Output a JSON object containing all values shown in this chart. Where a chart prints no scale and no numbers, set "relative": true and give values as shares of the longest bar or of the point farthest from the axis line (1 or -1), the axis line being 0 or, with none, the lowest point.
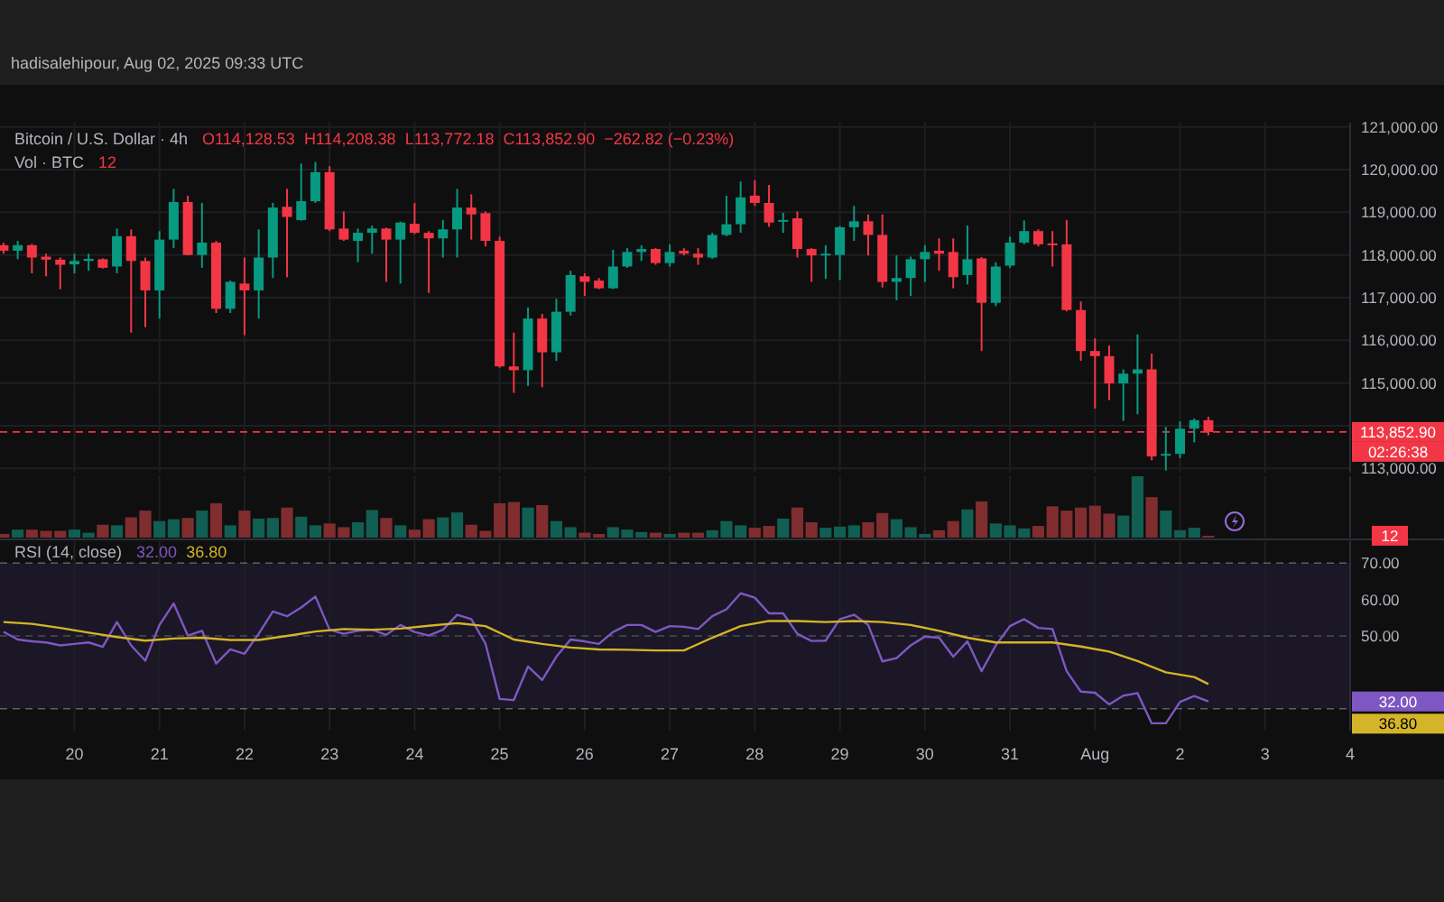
{
  "chart_data": [
    {
      "type": "candlestick",
      "title": "Bitcoin / U.S. Dollar · 4h",
      "subtitle": "hadisalehipour, Aug 02, 2025 09:33 UTC",
      "annotations": [
        "O114,128.53",
        "H114,208.38",
        "L113,772.18",
        "C113,852.90",
        "−262.82 (−0.23%)",
        "02:26:38"
      ],
      "x": [
        "2025-07-19T04:00",
        "2025-07-19T08:00",
        "2025-07-19T12:00",
        "2025-07-19T16:00",
        "2025-07-19T20:00",
        "2025-07-20T00:00",
        "2025-07-20T04:00",
        "2025-07-20T08:00",
        "2025-07-20T12:00",
        "2025-07-20T16:00",
        "2025-07-20T20:00",
        "2025-07-21T00:00",
        "2025-07-21T04:00",
        "2025-07-21T08:00",
        "2025-07-21T12:00",
        "2025-07-21T16:00",
        "2025-07-21T20:00",
        "2025-07-22T00:00",
        "2025-07-22T04:00",
        "2025-07-22T08:00",
        "2025-07-22T12:00",
        "2025-07-22T16:00",
        "2025-07-22T20:00",
        "2025-07-23T00:00",
        "2025-07-23T04:00",
        "2025-07-23T08:00",
        "2025-07-23T12:00",
        "2025-07-23T16:00",
        "2025-07-23T20:00",
        "2025-07-24T00:00",
        "2025-07-24T04:00",
        "2025-07-24T08:00",
        "2025-07-24T12:00",
        "2025-07-24T16:00",
        "2025-07-24T20:00",
        "2025-07-25T00:00",
        "2025-07-25T04:00",
        "2025-07-25T08:00",
        "2025-07-25T12:00",
        "2025-07-25T16:00",
        "2025-07-25T20:00",
        "2025-07-26T00:00",
        "2025-07-26T04:00",
        "2025-07-26T08:00",
        "2025-07-26T12:00",
        "2025-07-26T16:00",
        "2025-07-26T20:00",
        "2025-07-27T00:00",
        "2025-07-27T04:00",
        "2025-07-27T08:00",
        "2025-07-27T12:00",
        "2025-07-27T16:00",
        "2025-07-27T20:00",
        "2025-07-28T00:00",
        "2025-07-28T04:00",
        "2025-07-28T08:00",
        "2025-07-28T12:00",
        "2025-07-28T16:00",
        "2025-07-28T20:00",
        "2025-07-29T00:00",
        "2025-07-29T04:00",
        "2025-07-29T08:00",
        "2025-07-29T12:00",
        "2025-07-29T16:00",
        "2025-07-29T20:00",
        "2025-07-30T00:00",
        "2025-07-30T04:00",
        "2025-07-30T08:00",
        "2025-07-30T12:00",
        "2025-07-30T16:00",
        "2025-07-30T20:00",
        "2025-07-31T00:00",
        "2025-07-31T04:00",
        "2025-07-31T08:00",
        "2025-07-31T12:00",
        "2025-07-31T16:00",
        "2025-07-31T20:00",
        "2025-08-01T00:00",
        "2025-08-01T04:00",
        "2025-08-01T08:00",
        "2025-08-01T12:00",
        "2025-08-01T16:00",
        "2025-08-01T20:00",
        "2025-08-02T00:00",
        "2025-08-02T04:00",
        "2025-08-02T08:00"
      ],
      "ohlc": [
        [
          118230,
          118290,
          118030,
          118100
        ],
        [
          118100,
          118330,
          117900,
          118230
        ],
        [
          118230,
          118260,
          117570,
          117940
        ],
        [
          117960,
          118030,
          117500,
          117890
        ],
        [
          117890,
          117940,
          117200,
          117770
        ],
        [
          117780,
          118030,
          117570,
          117860
        ],
        [
          117860,
          118030,
          117630,
          117910
        ],
        [
          117900,
          117920,
          117680,
          117700
        ],
        [
          117730,
          118620,
          117570,
          118440
        ],
        [
          118440,
          118600,
          116180,
          117860
        ],
        [
          117860,
          117940,
          116310,
          117170
        ],
        [
          117170,
          118560,
          116510,
          118360
        ],
        [
          118360,
          119550,
          118160,
          119240
        ],
        [
          119240,
          119390,
          117990,
          118000
        ],
        [
          118000,
          119220,
          117700,
          118290
        ],
        [
          118290,
          118330,
          116640,
          116740
        ],
        [
          116740,
          117400,
          116640,
          117370
        ],
        [
          117330,
          117940,
          116120,
          117170
        ],
        [
          117170,
          118600,
          116510,
          117940
        ],
        [
          117940,
          119220,
          117460,
          119110
        ],
        [
          119130,
          119550,
          117480,
          118890
        ],
        [
          118820,
          120140,
          118800,
          119260
        ],
        [
          119260,
          120180,
          119220,
          119940
        ],
        [
          119940,
          120080,
          118560,
          118600
        ],
        [
          118620,
          119020,
          118330,
          118360
        ],
        [
          118330,
          118620,
          117830,
          118520
        ],
        [
          118520,
          118690,
          118030,
          118620
        ],
        [
          118620,
          118640,
          117370,
          118360
        ],
        [
          118360,
          118780,
          117330,
          118760
        ],
        [
          118730,
          119220,
          118490,
          118520
        ],
        [
          118520,
          118560,
          117110,
          118390
        ],
        [
          118390,
          118820,
          117940,
          118600
        ],
        [
          118600,
          119550,
          117940,
          119110
        ],
        [
          119110,
          119420,
          118360,
          118950
        ],
        [
          118980,
          119020,
          118200,
          118330
        ],
        [
          118330,
          118430,
          115360,
          115390
        ],
        [
          115390,
          116180,
          114770,
          115300
        ],
        [
          115300,
          116770,
          114930,
          116510
        ],
        [
          116510,
          116620,
          114900,
          115720
        ],
        [
          115720,
          116970,
          115520,
          116670
        ],
        [
          116670,
          117630,
          116580,
          117530
        ],
        [
          117500,
          117570,
          117040,
          117370
        ],
        [
          117400,
          117460,
          117200,
          117220
        ],
        [
          117220,
          118120,
          117200,
          117730
        ],
        [
          117730,
          118160,
          117700,
          118070
        ],
        [
          118070,
          118230,
          117860,
          118140
        ],
        [
          118140,
          118160,
          117770,
          117810
        ],
        [
          117810,
          118250,
          117730,
          118070
        ],
        [
          118100,
          118160,
          117990,
          118030
        ],
        [
          118030,
          118160,
          117770,
          117940
        ],
        [
          117940,
          118520,
          117910,
          118470
        ],
        [
          118470,
          119390,
          118440,
          118720
        ],
        [
          118720,
          119720,
          118520,
          119350
        ],
        [
          119390,
          119750,
          119150,
          119220
        ],
        [
          119220,
          119640,
          118660,
          118760
        ],
        [
          118800,
          118990,
          118520,
          118820
        ],
        [
          118860,
          119020,
          117940,
          118140
        ],
        [
          118140,
          118160,
          117370,
          117990
        ],
        [
          118010,
          118230,
          117440,
          118030
        ],
        [
          118000,
          118680,
          117410,
          118650
        ],
        [
          118650,
          119150,
          118330,
          118790
        ],
        [
          118790,
          118950,
          117990,
          118470
        ],
        [
          118470,
          118950,
          117240,
          117370
        ],
        [
          117370,
          117990,
          116940,
          117460
        ],
        [
          117460,
          117960,
          117040,
          117900
        ],
        [
          117900,
          118230,
          117370,
          118070
        ],
        [
          118100,
          118390,
          117630,
          118030
        ],
        [
          118070,
          118390,
          117220,
          117480
        ],
        [
          117530,
          118690,
          117310,
          117900
        ],
        [
          117920,
          117950,
          115750,
          116880
        ],
        [
          116880,
          117830,
          116800,
          117730
        ],
        [
          117750,
          118430,
          117700,
          118290
        ],
        [
          118290,
          118810,
          118250,
          118560
        ],
        [
          118560,
          118600,
          118200,
          118250
        ],
        [
          118270,
          118560,
          117730,
          118230
        ],
        [
          118250,
          118820,
          116680,
          116710
        ],
        [
          116710,
          116910,
          115520,
          115750
        ],
        [
          115750,
          116050,
          114400,
          115630
        ],
        [
          115630,
          115880,
          114600,
          114990
        ],
        [
          114990,
          115320,
          114110,
          115220
        ],
        [
          115220,
          116140,
          114270,
          115320
        ],
        [
          115320,
          115690,
          113190,
          113280
        ],
        [
          113300,
          113970,
          112950,
          113340
        ],
        [
          113340,
          114100,
          113240,
          113930
        ],
        [
          113930,
          114170,
          113610,
          114130
        ],
        [
          114128.53,
          114208.38,
          113772.18,
          113852.9
        ]
      ],
      "colors": [
        "#f23645",
        "#089981",
        "#f23645",
        "#f23645",
        "#f23645",
        "#089981",
        "#089981",
        "#f23645",
        "#089981",
        "#f23645",
        "#f23645",
        "#089981",
        "#089981",
        "#f23645",
        "#089981",
        "#f23645",
        "#089981",
        "#f23645",
        "#089981",
        "#089981",
        "#f23645",
        "#089981",
        "#089981",
        "#f23645",
        "#f23645",
        "#089981",
        "#089981",
        "#f23645",
        "#089981",
        "#f23645",
        "#f23645",
        "#089981",
        "#089981",
        "#f23645",
        "#f23645",
        "#f23645",
        "#f23645",
        "#089981",
        "#f23645",
        "#089981",
        "#089981",
        "#f23645",
        "#f23645",
        "#089981",
        "#089981",
        "#089981",
        "#f23645",
        "#089981",
        "#f23645",
        "#f23645",
        "#089981",
        "#089981",
        "#089981",
        "#f23645",
        "#f23645",
        "#089981",
        "#f23645",
        "#f23645",
        "#089981",
        "#089981",
        "#089981",
        "#f23645",
        "#f23645",
        "#089981",
        "#089981",
        "#089981",
        "#f23645",
        "#f23645",
        "#089981",
        "#f23645",
        "#089981",
        "#089981",
        "#089981",
        "#f23645",
        "#f23645",
        "#f23645",
        "#f23645",
        "#f23645",
        "#f23645",
        "#089981",
        "#089981",
        "#f23645",
        "#089981",
        "#089981",
        "#089981",
        "#f23645"
      ],
      "xlim": [
        "2025-07-19T03:00",
        "2025-08-04T00:00"
      ],
      "ylim": [
        112900,
        121100
      ],
      "yticks": [
        {
          "value": 113000,
          "label": "113,000.00"
        },
        {
          "value": 114000,
          "label": null
        },
        {
          "value": 115000,
          "label": "115,000.00"
        },
        {
          "value": 116000,
          "label": "116,000.00"
        },
        {
          "value": 117000,
          "label": "117,000.00"
        },
        {
          "value": 118000,
          "label": "118,000.00"
        },
        {
          "value": 119000,
          "label": "119,000.00"
        },
        {
          "value": 120000,
          "label": "120,000.00"
        },
        {
          "value": 121000,
          "label": "121,000.00"
        }
      ],
      "grid": true,
      "tick_labels": "y",
      "ref_lines": [
        {
          "axis": "y",
          "value": 113852.9,
          "label": "113,852.90",
          "color": "#f23645",
          "line_style": "dashed"
        }
      ]
    },
    {
      "type": "bar",
      "title": "Vol · BTC",
      "relative": true,
      "tick_labels": false,
      "grid": "x",
      "annotations": [
        "12"
      ],
      "x": [
        "2025-07-19T04:00",
        "2025-07-19T08:00",
        "2025-07-19T12:00",
        "2025-07-19T16:00",
        "2025-07-19T20:00",
        "2025-07-20T00:00",
        "2025-07-20T04:00",
        "2025-07-20T08:00",
        "2025-07-20T12:00",
        "2025-07-20T16:00",
        "2025-07-20T20:00",
        "2025-07-21T00:00",
        "2025-07-21T04:00",
        "2025-07-21T08:00",
        "2025-07-21T12:00",
        "2025-07-21T16:00",
        "2025-07-21T20:00",
        "2025-07-22T00:00",
        "2025-07-22T04:00",
        "2025-07-22T08:00",
        "2025-07-22T12:00",
        "2025-07-22T16:00",
        "2025-07-22T20:00",
        "2025-07-23T00:00",
        "2025-07-23T04:00",
        "2025-07-23T08:00",
        "2025-07-23T12:00",
        "2025-07-23T16:00",
        "2025-07-23T20:00",
        "2025-07-24T00:00",
        "2025-07-24T04:00",
        "2025-07-24T08:00",
        "2025-07-24T12:00",
        "2025-07-24T16:00",
        "2025-07-24T20:00",
        "2025-07-25T00:00",
        "2025-07-25T04:00",
        "2025-07-25T08:00",
        "2025-07-25T12:00",
        "2025-07-25T16:00",
        "2025-07-25T20:00",
        "2025-07-26T00:00",
        "2025-07-26T04:00",
        "2025-07-26T08:00",
        "2025-07-26T12:00",
        "2025-07-26T16:00",
        "2025-07-26T20:00",
        "2025-07-27T00:00",
        "2025-07-27T04:00",
        "2025-07-27T08:00",
        "2025-07-27T12:00",
        "2025-07-27T16:00",
        "2025-07-27T20:00",
        "2025-07-28T00:00",
        "2025-07-28T04:00",
        "2025-07-28T08:00",
        "2025-07-28T12:00",
        "2025-07-28T16:00",
        "2025-07-28T20:00",
        "2025-07-29T00:00",
        "2025-07-29T04:00",
        "2025-07-29T08:00",
        "2025-07-29T12:00",
        "2025-07-29T16:00",
        "2025-07-29T20:00",
        "2025-07-30T00:00",
        "2025-07-30T04:00",
        "2025-07-30T08:00",
        "2025-07-30T12:00",
        "2025-07-30T16:00",
        "2025-07-30T20:00",
        "2025-07-31T00:00",
        "2025-07-31T04:00",
        "2025-07-31T08:00",
        "2025-07-31T12:00",
        "2025-07-31T16:00",
        "2025-07-31T20:00",
        "2025-08-01T00:00",
        "2025-08-01T04:00",
        "2025-08-01T08:00",
        "2025-08-01T12:00",
        "2025-08-01T16:00",
        "2025-08-01T20:00",
        "2025-08-02T00:00",
        "2025-08-02T04:00",
        "2025-08-02T08:00"
      ],
      "values": [
        0.06,
        0.13,
        0.13,
        0.11,
        0.11,
        0.13,
        0.08,
        0.21,
        0.2,
        0.33,
        0.44,
        0.27,
        0.3,
        0.32,
        0.44,
        0.56,
        0.2,
        0.44,
        0.31,
        0.32,
        0.49,
        0.34,
        0.2,
        0.23,
        0.17,
        0.25,
        0.45,
        0.32,
        0.2,
        0.13,
        0.3,
        0.33,
        0.41,
        0.21,
        0.11,
        0.56,
        0.58,
        0.49,
        0.53,
        0.27,
        0.17,
        0.08,
        0.06,
        0.17,
        0.13,
        0.09,
        0.08,
        0.06,
        0.08,
        0.08,
        0.12,
        0.27,
        0.2,
        0.16,
        0.19,
        0.31,
        0.49,
        0.25,
        0.16,
        0.18,
        0.2,
        0.25,
        0.4,
        0.3,
        0.17,
        0.06,
        0.12,
        0.27,
        0.46,
        0.59,
        0.23,
        0.2,
        0.15,
        0.19,
        0.51,
        0.44,
        0.49,
        0.52,
        0.39,
        0.36,
        1,
        0.66,
        0.44,
        0.12,
        0.16,
        0.03
      ],
      "colors": [
        "#7f2d2f",
        "#115e52",
        "#7f2d2f",
        "#7f2d2f",
        "#7f2d2f",
        "#115e52",
        "#115e52",
        "#7f2d2f",
        "#115e52",
        "#7f2d2f",
        "#7f2d2f",
        "#115e52",
        "#115e52",
        "#7f2d2f",
        "#115e52",
        "#7f2d2f",
        "#115e52",
        "#7f2d2f",
        "#115e52",
        "#115e52",
        "#7f2d2f",
        "#115e52",
        "#115e52",
        "#7f2d2f",
        "#7f2d2f",
        "#115e52",
        "#115e52",
        "#7f2d2f",
        "#115e52",
        "#7f2d2f",
        "#7f2d2f",
        "#115e52",
        "#115e52",
        "#7f2d2f",
        "#7f2d2f",
        "#7f2d2f",
        "#7f2d2f",
        "#115e52",
        "#7f2d2f",
        "#115e52",
        "#115e52",
        "#7f2d2f",
        "#7f2d2f",
        "#115e52",
        "#115e52",
        "#115e52",
        "#7f2d2f",
        "#115e52",
        "#7f2d2f",
        "#7f2d2f",
        "#115e52",
        "#115e52",
        "#115e52",
        "#7f2d2f",
        "#7f2d2f",
        "#115e52",
        "#7f2d2f",
        "#7f2d2f",
        "#115e52",
        "#115e52",
        "#115e52",
        "#7f2d2f",
        "#7f2d2f",
        "#115e52",
        "#115e52",
        "#115e52",
        "#7f2d2f",
        "#7f2d2f",
        "#115e52",
        "#7f2d2f",
        "#115e52",
        "#115e52",
        "#115e52",
        "#7f2d2f",
        "#7f2d2f",
        "#7f2d2f",
        "#7f2d2f",
        "#7f2d2f",
        "#7f2d2f",
        "#115e52",
        "#115e52",
        "#7f2d2f",
        "#115e52",
        "#115e52",
        "#115e52",
        "#7f2d2f"
      ],
      "xlim": [
        "2025-07-19T03:00",
        "2025-08-04T00:00"
      ]
    },
    {
      "type": "line",
      "title": "RSI (14, close)",
      "grid": "x",
      "annotations": [
        "32.00",
        "36.80"
      ],
      "x": [
        "2025-07-19T04:00",
        "2025-07-19T08:00",
        "2025-07-19T12:00",
        "2025-07-19T16:00",
        "2025-07-19T20:00",
        "2025-07-20T00:00",
        "2025-07-20T04:00",
        "2025-07-20T08:00",
        "2025-07-20T12:00",
        "2025-07-20T16:00",
        "2025-07-20T20:00",
        "2025-07-21T00:00",
        "2025-07-21T04:00",
        "2025-07-21T08:00",
        "2025-07-21T12:00",
        "2025-07-21T16:00",
        "2025-07-21T20:00",
        "2025-07-22T00:00",
        "2025-07-22T04:00",
        "2025-07-22T08:00",
        "2025-07-22T12:00",
        "2025-07-22T16:00",
        "2025-07-22T20:00",
        "2025-07-23T00:00",
        "2025-07-23T04:00",
        "2025-07-23T08:00",
        "2025-07-23T12:00",
        "2025-07-23T16:00",
        "2025-07-23T20:00",
        "2025-07-24T00:00",
        "2025-07-24T04:00",
        "2025-07-24T08:00",
        "2025-07-24T12:00",
        "2025-07-24T16:00",
        "2025-07-24T20:00",
        "2025-07-25T00:00",
        "2025-07-25T04:00",
        "2025-07-25T08:00",
        "2025-07-25T12:00",
        "2025-07-25T16:00",
        "2025-07-25T20:00",
        "2025-07-26T00:00",
        "2025-07-26T04:00",
        "2025-07-26T08:00",
        "2025-07-26T12:00",
        "2025-07-26T16:00",
        "2025-07-26T20:00",
        "2025-07-27T00:00",
        "2025-07-27T04:00",
        "2025-07-27T08:00",
        "2025-07-27T12:00",
        "2025-07-27T16:00",
        "2025-07-27T20:00",
        "2025-07-28T00:00",
        "2025-07-28T04:00",
        "2025-07-28T08:00",
        "2025-07-28T12:00",
        "2025-07-28T16:00",
        "2025-07-28T20:00",
        "2025-07-29T00:00",
        "2025-07-29T04:00",
        "2025-07-29T08:00",
        "2025-07-29T12:00",
        "2025-07-29T16:00",
        "2025-07-29T20:00",
        "2025-07-30T00:00",
        "2025-07-30T04:00",
        "2025-07-30T08:00",
        "2025-07-30T12:00",
        "2025-07-30T16:00",
        "2025-07-30T20:00",
        "2025-07-31T00:00",
        "2025-07-31T04:00",
        "2025-07-31T08:00",
        "2025-07-31T12:00",
        "2025-07-31T16:00",
        "2025-07-31T20:00",
        "2025-08-01T00:00",
        "2025-08-01T04:00",
        "2025-08-01T08:00",
        "2025-08-01T12:00",
        "2025-08-01T16:00",
        "2025-08-01T20:00",
        "2025-08-02T00:00",
        "2025-08-02T04:00",
        "2025-08-02T08:00"
      ],
      "series": [
        {
          "color": "#7e57c2",
          "values": [
            51.1,
            49.0,
            48.5,
            48.2,
            47.4,
            47.8,
            48.2,
            47.0,
            53.8,
            47.4,
            43.2,
            53.0,
            58.9,
            50.1,
            51.4,
            42.4,
            46.3,
            45.1,
            50.6,
            56.7,
            55.4,
            57.8,
            60.8,
            51.7,
            50.6,
            51.4,
            51.7,
            50.3,
            53.0,
            51.1,
            50.1,
            51.7,
            55.8,
            54.6,
            47.9,
            32.7,
            32.4,
            41.6,
            37.9,
            44.3,
            49.0,
            48.5,
            47.8,
            51.1,
            53.0,
            53.0,
            51.1,
            52.7,
            52.5,
            51.9,
            55.4,
            57.3,
            61.7,
            60.5,
            56.2,
            56.2,
            50.6,
            48.6,
            48.7,
            54.6,
            55.8,
            53.0,
            43.0,
            43.9,
            47.4,
            49.8,
            49.5,
            44.3,
            48.5,
            40.3,
            47.4,
            52.7,
            54.6,
            52.2,
            51.9,
            40.3,
            34.7,
            34.4,
            31.2,
            33.6,
            34.3,
            26.0,
            26.0,
            31.9,
            33.5,
            32
          ]
        },
        {
          "color": "#d4b429",
          "x": [
            "2025-07-19T04:00",
            "2025-07-19T12:00",
            "2025-07-19T20:00",
            "2025-07-20T04:00",
            "2025-07-20T12:00",
            "2025-07-20T20:00",
            "2025-07-21T04:00",
            "2025-07-21T12:00",
            "2025-07-21T20:00",
            "2025-07-22T04:00",
            "2025-07-22T12:00",
            "2025-07-22T20:00",
            "2025-07-23T04:00",
            "2025-07-23T12:00",
            "2025-07-23T20:00",
            "2025-07-24T04:00",
            "2025-07-24T12:00",
            "2025-07-24T20:00",
            "2025-07-25T04:00",
            "2025-07-25T12:00",
            "2025-07-25T20:00",
            "2025-07-26T04:00",
            "2025-07-26T12:00",
            "2025-07-26T20:00",
            "2025-07-27T04:00",
            "2025-07-27T12:00",
            "2025-07-27T20:00",
            "2025-07-28T04:00",
            "2025-07-28T12:00",
            "2025-07-28T20:00",
            "2025-07-29T04:00",
            "2025-07-29T12:00",
            "2025-07-29T20:00",
            "2025-07-30T04:00",
            "2025-07-30T12:00",
            "2025-07-30T20:00",
            "2025-07-31T04:00",
            "2025-07-31T12:00",
            "2025-07-31T20:00",
            "2025-08-01T04:00",
            "2025-08-01T12:00",
            "2025-08-01T20:00",
            "2025-08-02T04:00",
            "2025-08-02T08:00"
          ],
          "values": [
            53.8,
            53.3,
            52.2,
            50.9,
            49.7,
            48.7,
            49.3,
            49.5,
            48.9,
            48.9,
            50.0,
            51.2,
            51.9,
            51.7,
            52.0,
            52.8,
            53.5,
            52.7,
            49.0,
            47.8,
            46.8,
            46.3,
            46.2,
            46.0,
            46.0,
            49.5,
            52.7,
            54.1,
            54.1,
            53.8,
            54.1,
            53.8,
            53.0,
            51.4,
            49.5,
            48.2,
            48.2,
            48.2,
            47.1,
            45.7,
            43.1,
            40.0,
            38.7,
            36.8
          ]
        }
      ],
      "xlim": [
        "2025-07-19T03:00",
        "2025-08-04T00:00"
      ],
      "xticks": [
        {
          "value": "2025-07-20",
          "label": "20"
        },
        {
          "value": "2025-07-21",
          "label": "21"
        },
        {
          "value": "2025-07-22",
          "label": "22"
        },
        {
          "value": "2025-07-23",
          "label": "23"
        },
        {
          "value": "2025-07-24",
          "label": "24"
        },
        {
          "value": "2025-07-25",
          "label": "25"
        },
        {
          "value": "2025-07-26",
          "label": "26"
        },
        {
          "value": "2025-07-27",
          "label": "27"
        },
        {
          "value": "2025-07-28",
          "label": "28"
        },
        {
          "value": "2025-07-29",
          "label": "29"
        },
        {
          "value": "2025-07-30",
          "label": "30"
        },
        {
          "value": "2025-07-31",
          "label": "31"
        },
        {
          "value": "2025-08-01",
          "label": "Aug"
        },
        {
          "value": "2025-08-02",
          "label": "2"
        },
        {
          "value": "2025-08-03",
          "label": "3"
        },
        {
          "value": "2025-08-04",
          "label": "4"
        }
      ],
      "ylim": [
        24,
        76
      ],
      "yticks": [
        {
          "value": 50,
          "label": "50.00"
        },
        {
          "value": 60,
          "label": "60.00"
        },
        {
          "value": 70,
          "label": "70.00"
        }
      ],
      "ref_lines": [
        {
          "axis": "y",
          "value": 70,
          "color": "#5d606b",
          "line_style": "dashed"
        },
        {
          "axis": "y",
          "value": 50,
          "color": "#4a4d57",
          "line_style": "dashed"
        },
        {
          "axis": "y",
          "value": 30,
          "color": "#5d606b",
          "line_style": "dashed"
        }
      ],
      "bands": [
        {
          "axis": "y",
          "from": 30,
          "to": 70,
          "color": "#1b1726"
        }
      ]
    }
  ]
}
